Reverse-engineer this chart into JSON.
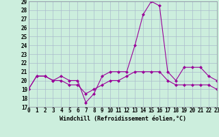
{
  "xlabel": "Windchill (Refroidissement éolien,°C)",
  "x_hours": [
    0,
    1,
    2,
    3,
    4,
    5,
    6,
    7,
    8,
    9,
    10,
    11,
    12,
    13,
    14,
    15,
    16,
    17,
    18,
    19,
    20,
    21,
    22,
    23
  ],
  "temp_series": [
    19.0,
    20.5,
    20.5,
    20.0,
    20.5,
    20.0,
    20.0,
    17.5,
    18.5,
    20.5,
    21.0,
    21.0,
    21.0,
    24.0,
    27.5,
    29.0,
    28.5,
    21.0,
    20.0,
    21.5,
    21.5,
    21.5,
    20.5,
    20.0
  ],
  "windchill_series": [
    19.0,
    20.5,
    20.5,
    20.0,
    20.0,
    19.5,
    19.5,
    18.5,
    19.0,
    19.5,
    20.0,
    20.0,
    20.5,
    21.0,
    21.0,
    21.0,
    21.0,
    20.0,
    19.5,
    19.5,
    19.5,
    19.5,
    19.5,
    19.0
  ],
  "line_color": "#990099",
  "bg_color": "#cceedd",
  "grid_color": "#aabbcc",
  "ylim": [
    17,
    29
  ],
  "yticks": [
    17,
    18,
    19,
    20,
    21,
    22,
    23,
    24,
    25,
    26,
    27,
    28,
    29
  ],
  "xlim": [
    0,
    23
  ],
  "xticks": [
    0,
    1,
    2,
    3,
    4,
    5,
    6,
    7,
    8,
    9,
    10,
    11,
    12,
    13,
    14,
    15,
    16,
    17,
    18,
    19,
    20,
    21,
    22,
    23
  ],
  "tick_fontsize": 5.5,
  "label_fontsize": 6.0,
  "marker": "D",
  "markersize": 2.0,
  "linewidth": 0.8
}
